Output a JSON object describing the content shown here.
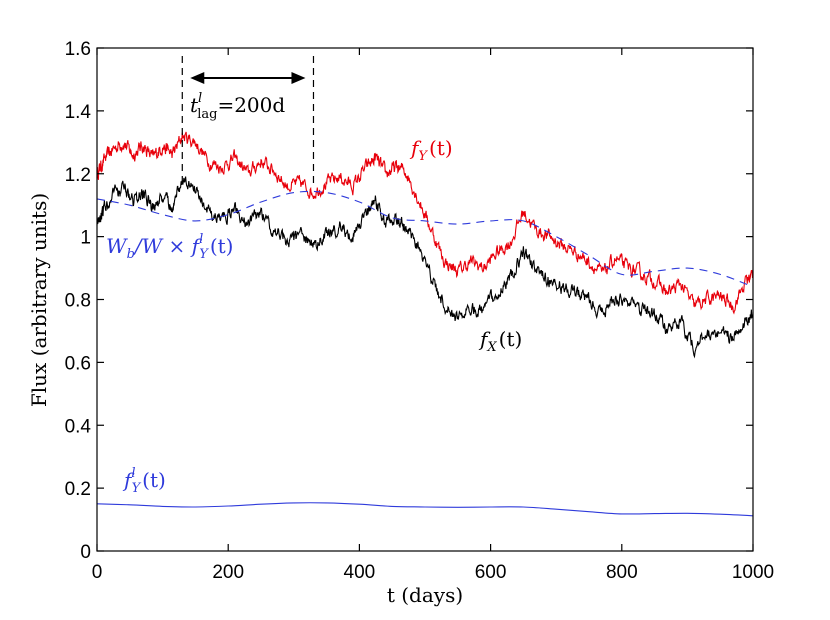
{
  "chart_data": {
    "type": "line",
    "title": "",
    "xlabel": "t (days)",
    "ylabel": "Flux (arbitrary units)",
    "xlim": [
      0,
      1000
    ],
    "ylim": [
      0,
      1.6
    ],
    "xticks": [
      0,
      200,
      400,
      600,
      800,
      1000
    ],
    "yticks": [
      0,
      0.2,
      0.4,
      0.6,
      0.8,
      1,
      1.2,
      1.4,
      1.6
    ],
    "xtick_labels": [
      "0",
      "200",
      "400",
      "600",
      "800",
      "1000"
    ],
    "ytick_labels": [
      "0",
      "0.2",
      "0.4",
      "0.6",
      "0.8",
      "1",
      "1.2",
      "1.4",
      "1.6"
    ],
    "grid": false,
    "series": [
      {
        "name": "f_Y(t)",
        "color": "#e8000b",
        "style": "solid",
        "noisy": true,
        "x": [
          0,
          10,
          25,
          40,
          55,
          70,
          85,
          100,
          115,
          130,
          150,
          170,
          190,
          210,
          230,
          250,
          270,
          290,
          310,
          330,
          350,
          370,
          390,
          410,
          425,
          440,
          455,
          470,
          490,
          510,
          530,
          550,
          570,
          590,
          610,
          630,
          650,
          670,
          690,
          710,
          730,
          750,
          770,
          790,
          810,
          830,
          850,
          870,
          890,
          910,
          930,
          950,
          970,
          990,
          1000
        ],
        "y": [
          1.2,
          1.24,
          1.28,
          1.3,
          1.26,
          1.29,
          1.25,
          1.29,
          1.26,
          1.32,
          1.3,
          1.24,
          1.22,
          1.25,
          1.2,
          1.24,
          1.21,
          1.16,
          1.17,
          1.14,
          1.17,
          1.19,
          1.16,
          1.22,
          1.25,
          1.2,
          1.22,
          1.21,
          1.12,
          1.02,
          0.92,
          0.89,
          0.92,
          0.9,
          0.95,
          0.98,
          1.08,
          1.02,
          1.0,
          0.97,
          0.95,
          0.92,
          0.88,
          0.93,
          0.9,
          0.88,
          0.86,
          0.82,
          0.85,
          0.78,
          0.8,
          0.81,
          0.78,
          0.86,
          0.88
        ]
      },
      {
        "name": "f_X(t)",
        "color": "#000000",
        "style": "solid",
        "noisy": true,
        "x": [
          0,
          10,
          25,
          40,
          55,
          70,
          85,
          100,
          115,
          130,
          150,
          170,
          190,
          210,
          230,
          250,
          270,
          290,
          310,
          330,
          350,
          370,
          390,
          410,
          425,
          440,
          455,
          470,
          490,
          510,
          530,
          550,
          570,
          590,
          610,
          630,
          650,
          670,
          690,
          710,
          730,
          750,
          770,
          790,
          810,
          830,
          850,
          870,
          890,
          910,
          930,
          950,
          970,
          990,
          1000
        ],
        "y": [
          1.05,
          1.09,
          1.13,
          1.15,
          1.11,
          1.14,
          1.09,
          1.13,
          1.1,
          1.18,
          1.15,
          1.08,
          1.05,
          1.09,
          1.04,
          1.08,
          1.02,
          0.98,
          1.0,
          0.97,
          1.01,
          1.03,
          1.0,
          1.07,
          1.11,
          1.05,
          1.05,
          1.03,
          0.97,
          0.86,
          0.78,
          0.74,
          0.77,
          0.76,
          0.83,
          0.87,
          0.95,
          0.89,
          0.86,
          0.84,
          0.82,
          0.8,
          0.76,
          0.8,
          0.79,
          0.77,
          0.75,
          0.7,
          0.73,
          0.65,
          0.69,
          0.7,
          0.68,
          0.74,
          0.76
        ]
      },
      {
        "name": "W_b/W × f_Y^l(t)",
        "color": "#2f3bdb",
        "style": "dashed",
        "noisy": false,
        "x": [
          0,
          50,
          100,
          150,
          200,
          250,
          300,
          350,
          400,
          450,
          500,
          550,
          600,
          650,
          700,
          750,
          800,
          850,
          900,
          950,
          1000
        ],
        "y": [
          1.12,
          1.1,
          1.07,
          1.05,
          1.07,
          1.11,
          1.14,
          1.14,
          1.11,
          1.06,
          1.05,
          1.04,
          1.05,
          1.05,
          1.0,
          0.94,
          0.88,
          0.89,
          0.9,
          0.88,
          0.84
        ]
      },
      {
        "name": "f_Y^l(t)",
        "color": "#2f3bdb",
        "style": "solid",
        "noisy": false,
        "x": [
          0,
          50,
          100,
          150,
          200,
          250,
          300,
          350,
          400,
          450,
          500,
          550,
          600,
          650,
          700,
          750,
          800,
          850,
          900,
          950,
          1000
        ],
        "y": [
          0.15,
          0.147,
          0.142,
          0.14,
          0.143,
          0.149,
          0.153,
          0.153,
          0.149,
          0.142,
          0.14,
          0.139,
          0.14,
          0.14,
          0.133,
          0.125,
          0.118,
          0.119,
          0.12,
          0.117,
          0.112
        ]
      }
    ],
    "annotations": {
      "lag_start_x": 130,
      "lag_end_x": 330,
      "lag_label_main": "t",
      "lag_label_sup": "l",
      "lag_label_sub": "lag",
      "lag_label_rest": "=200d",
      "label_fy_main": "f",
      "label_fy_sub": "Y",
      "label_fy_rest": "(t)",
      "label_fx_main": "f",
      "label_fx_sub": "X",
      "label_fx_rest": "(t)",
      "label_w_main": "W",
      "label_w_sub": "b",
      "label_w_mid": "/W × f",
      "label_w_sup": "l",
      "label_w_sub2": "Y",
      "label_w_rest": "(t)",
      "label_fyl_main": "f",
      "label_fyl_sup": "l",
      "label_fyl_sub": "Y",
      "label_fyl_rest": "(t)",
      "label_red": "#e8000b",
      "label_black": "#000000",
      "label_blue": "#2f3bdb"
    }
  }
}
